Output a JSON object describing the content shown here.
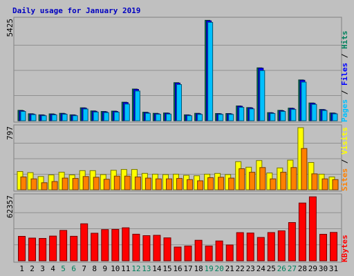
{
  "chart_data": {
    "type": "bar",
    "title": "Daily usage for January 2019",
    "x": [
      "1",
      "2",
      "3",
      "4",
      "5",
      "6",
      "7",
      "8",
      "9",
      "10",
      "11",
      "12",
      "13",
      "14",
      "15",
      "16",
      "17",
      "18",
      "19",
      "20",
      "21",
      "22",
      "23",
      "24",
      "25",
      "26",
      "27",
      "28",
      "29",
      "30",
      "31"
    ],
    "weekend_days": [
      "5",
      "6",
      "12",
      "13",
      "19",
      "20",
      "26",
      "27"
    ],
    "panels": [
      {
        "ymax": 5425,
        "ymax_label": "5425",
        "right_labels": [
          "Pages",
          "Files",
          "Hits"
        ],
        "series": [
          {
            "name": "Hits",
            "color": "#00805c",
            "values": [
              560,
              380,
              320,
              370,
              400,
              320,
              700,
              530,
              500,
              520,
              1000,
              1710,
              460,
              400,
              420,
              2050,
              320,
              400,
              5410,
              390,
              390,
              800,
              710,
              2850,
              440,
              560,
              680,
              2200,
              960,
              610,
              420
            ]
          },
          {
            "name": "Files",
            "color": "#0000ff",
            "values": [
              540,
              360,
              300,
              350,
              380,
              300,
              680,
              510,
              480,
              500,
              980,
              1690,
              440,
              380,
              400,
              2030,
              300,
              380,
              5380,
              370,
              370,
              780,
              690,
              2830,
              420,
              540,
              660,
              2180,
              940,
              590,
              400
            ]
          },
          {
            "name": "Pages",
            "color": "#00c0ff",
            "values": [
              500,
              330,
              270,
              320,
              350,
              270,
              630,
              470,
              440,
              460,
              900,
              1600,
              400,
              350,
              360,
              1950,
              270,
              340,
              5300,
              340,
              340,
              720,
              640,
              2700,
              390,
              500,
              610,
              2080,
              880,
              550,
              370
            ]
          }
        ]
      },
      {
        "ymax": 797,
        "ymax_label": "797",
        "right_labels": [
          "Sites",
          "Visits"
        ],
        "series": [
          {
            "name": "Visits",
            "color": "#ffff00",
            "values": [
              235,
              220,
              170,
              190,
              225,
              190,
              245,
              245,
              195,
              250,
              260,
              260,
              210,
              200,
              195,
              200,
              185,
              180,
              200,
              210,
              195,
              360,
              290,
              375,
              215,
              280,
              380,
              797,
              350,
              200,
              165
            ]
          },
          {
            "name": "Sites",
            "color": "#ff8000",
            "values": [
              165,
              140,
              90,
              105,
              150,
              145,
              170,
              160,
              135,
              175,
              175,
              165,
              150,
              140,
              140,
              145,
              130,
              115,
              155,
              160,
              150,
              270,
              225,
              285,
              140,
              225,
              285,
              530,
              205,
              140,
              130
            ]
          }
        ]
      },
      {
        "ymax": 62357,
        "ymax_label": "62357",
        "right_labels": [
          "KBytes"
        ],
        "series": [
          {
            "name": "KBytes",
            "color": "#ff0000",
            "values": [
              23800,
              22100,
              21800,
              24100,
              29600,
              23900,
              36000,
              26800,
              30400,
              30600,
              32100,
              25900,
              24500,
              24800,
              22300,
              13400,
              14400,
              20000,
              14400,
              19300,
              15400,
              27400,
              27000,
              22700,
              27500,
              29200,
              37200,
              56200,
              62200,
              25800,
              27600
            ]
          }
        ]
      }
    ]
  },
  "colors": {
    "background": "#c0c0c0",
    "title": "#0000c0",
    "weekday_label": "#000000",
    "weekend_label": "#00805c"
  }
}
